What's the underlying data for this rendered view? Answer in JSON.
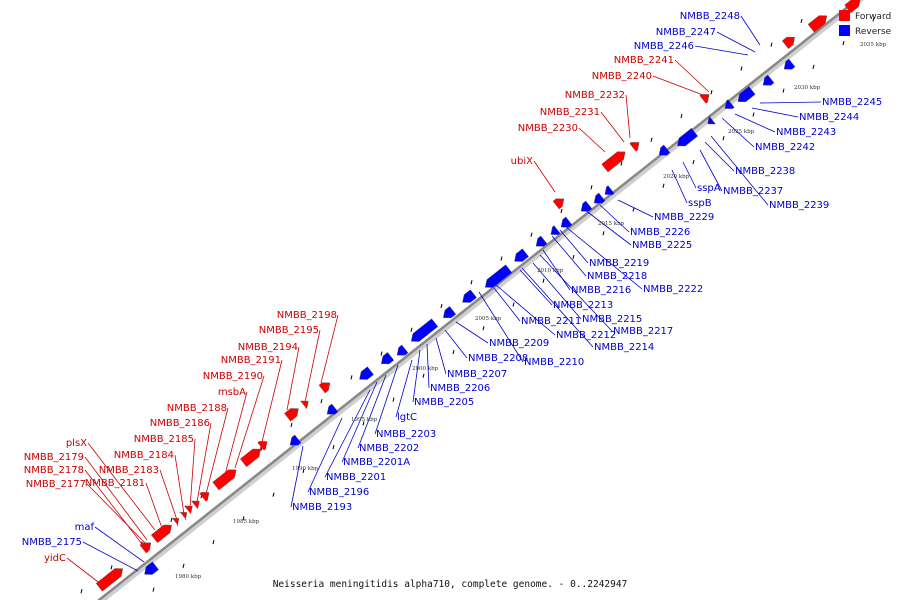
{
  "caption": "Neisseria meningitidis alpha710, complete genome. - 0..2242947",
  "legend": [
    {
      "label": "Forward",
      "color": "#ff0000"
    },
    {
      "label": "Reverse",
      "color": "#0000ff"
    }
  ],
  "scale": {
    "labels": [
      "1980 kbp",
      "1985 kbp",
      "1990 kbp",
      "1995 kbp",
      "2000 kbp",
      "2005 kbp",
      "2010 kbp",
      "2015 kbp",
      "2020 kbp",
      "2025 kbp",
      "2030 kbp",
      "2035 kbp"
    ]
  },
  "colors": {
    "forward": "#ff0000",
    "reverse": "#0000ff",
    "forward_text": "#cc0000",
    "reverse_text": "#0000cc",
    "backbone": "#888888"
  },
  "forward_labels": [
    "yidC",
    "NMBB_2177",
    "NMBB_2178",
    "NMBB_2179",
    "NMBB_2181",
    "plsX",
    "NMBB_2183",
    "NMBB_2184",
    "NMBB_2185",
    "NMBB_2186",
    "NMBB_2188",
    "msbA",
    "NMBB_2190",
    "NMBB_2191",
    "NMBB_2194",
    "NMBB_2195",
    "NMBB_2198",
    "ubiX",
    "NMBB_2230",
    "NMBB_2231",
    "NMBB_2232",
    "NMBB_2240",
    "NMBB_2241"
  ],
  "reverse_labels": [
    "NMBB_2175",
    "maf",
    "NMBB_2193",
    "NMBB_2196",
    "NMBB_2201",
    "NMBB_2201A",
    "NMBB_2202",
    "NMBB_2203",
    "lgtC",
    "NMBB_2205",
    "NMBB_2206",
    "NMBB_2207",
    "NMBB_2208",
    "NMBB_2209",
    "NMBB_2210",
    "NMBB_2211",
    "NMBB_2212",
    "NMBB_2213",
    "NMBB_2214",
    "NMBB_2215",
    "NMBB_2216",
    "NMBB_2217",
    "NMBB_2218",
    "NMBB_2219",
    "NMBB_2222",
    "NMBB_2225",
    "NMBB_2226",
    "NMBB_2229",
    "sspB",
    "sspA",
    "NMBB_2237",
    "NMBB_2238",
    "NMBB_2239",
    "NMBB_2242",
    "NMBB_2243",
    "NMBB_2244",
    "NMBB_2245",
    "NMBB_2246",
    "NMBB_2247",
    "NMBB_2248"
  ]
}
